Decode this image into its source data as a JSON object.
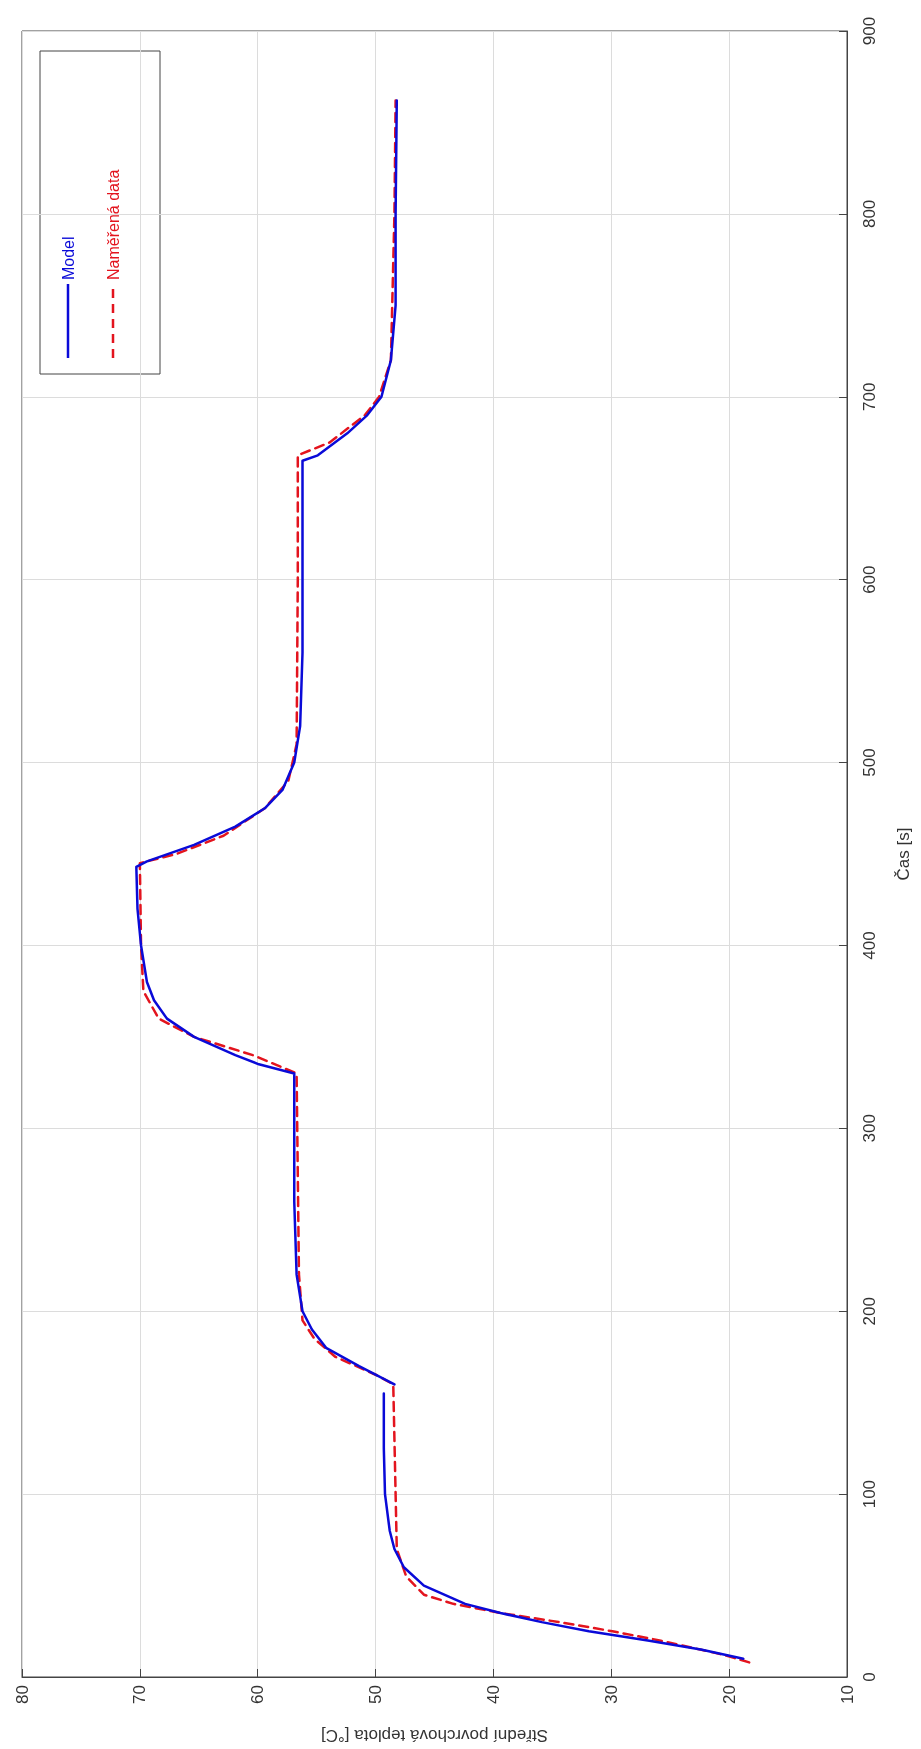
{
  "chart_data": {
    "type": "line",
    "xlabel": "Střední povrchová teplota [°C]",
    "ylabel": "Čas [s]",
    "xlim": [
      80,
      10
    ],
    "xticks": [
      80,
      70,
      60,
      50,
      40,
      30,
      20,
      10
    ],
    "ylim": [
      0,
      900
    ],
    "yticks": [
      0,
      100,
      200,
      300,
      400,
      500,
      600,
      700,
      800,
      900
    ],
    "grid": true,
    "legend": "top left",
    "marker": "none",
    "series": [
      {
        "name": "Model",
        "color": "#0a0ad8",
        "line_style": "solid",
        "x": [
          18.8,
          22.4,
          26.9,
          31.9,
          35.9,
          39.4,
          42.4,
          45.9,
          47.6,
          48.4,
          48.8,
          49.2,
          49.3,
          49.3,
          49.0,
          48.4,
          51.4,
          54.2,
          55.4,
          56.2,
          56.7,
          56.9,
          56.9,
          59.9,
          61.9,
          65.4,
          67.7,
          68.8,
          69.4,
          69.9,
          70.2,
          70.3,
          69.4,
          65.4,
          61.9,
          59.4,
          57.9,
          56.9,
          56.4,
          56.2,
          56.2,
          56.2,
          54.9,
          52.4,
          50.7,
          49.5,
          48.7,
          48.3,
          48.3,
          48.2
        ],
        "values": [
          10,
          15,
          20,
          25,
          30,
          35,
          40,
          50,
          60,
          70,
          80,
          100,
          125,
          155,
          null,
          160,
          170,
          180,
          190,
          200,
          220,
          260,
          330,
          335,
          340,
          350,
          360,
          370,
          380,
          400,
          420,
          443,
          446,
          455,
          465,
          475,
          485,
          500,
          520,
          560,
          600,
          665,
          668,
          680,
          690,
          700,
          720,
          750,
          800,
          862
        ]
      },
      {
        "name": "Naměřená data",
        "color": "#e3141e",
        "line_style": "dashed",
        "x": [
          18.3,
          20.4,
          25.9,
          29.9,
          34.4,
          39.4,
          43.4,
          45.9,
          47.4,
          48.2,
          48.3,
          48.5,
          49.9,
          53.4,
          55.2,
          56.2,
          56.5,
          56.7,
          60.4,
          65.4,
          68.4,
          69.7,
          69.9,
          70.0,
          66.9,
          62.9,
          59.4,
          57.4,
          56.7,
          56.6,
          56.6,
          53.9,
          50.9,
          49.7,
          48.7,
          48.4,
          48.3
        ],
        "values": [
          8,
          12,
          20,
          25,
          30,
          35,
          40,
          45,
          55,
          70,
          100,
          160,
          165,
          175,
          185,
          195,
          220,
          330,
          340,
          350,
          360,
          375,
          400,
          445,
          450,
          460,
          475,
          490,
          510,
          600,
          668,
          675,
          690,
          700,
          720,
          800,
          862
        ]
      }
    ]
  }
}
